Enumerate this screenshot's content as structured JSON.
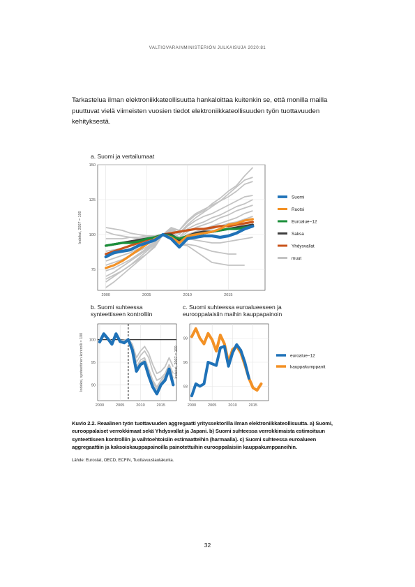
{
  "header": {
    "running_title": "VALTIOVARAINMINISTERIÖN JULKAISUJA 2020:81"
  },
  "body": {
    "paragraph": "Tarkastelua ilman elektroniikkateollisuutta hankaloittaa kuitenkin se, että monilla mailla puuttuvat vielä viimeisten vuosien tiedot elektroniikkateollisuuden työn tuottavuuden kehityksestä."
  },
  "figure": {
    "caption": "Kuvio 2.2.    Reaalinen työn tuottavuuden aggregaatti yrityssektorilla ilman elektroniikkateollisuutta. a) Suomi, eurooppalaiset verrokkimaat sekä Yhdysvallat ja Japani. b) Suomi suhteessa verrokkimaista estimoituun synteettiseen kontrolliin ja vaihtoehtoisiin estimaatteihin (harmaalla). c) Suomi suhteessa euroalueen aggregaattiin ja kaksoiskauppapainoilla painotettuihin eurooppalaisiin kauppakumppaneihin.",
    "source": "Lähde: Eurostat, OECD, ECFIN, Tuottavuuslautakunta."
  },
  "page_number": "32",
  "chart_data": [
    {
      "type": "line",
      "title": "a. Suomi ja vertailumaat",
      "ylabel": "Indeksi, 2007 = 100",
      "xlabel": "",
      "xlim": [
        1999,
        2019.5
      ],
      "ylim": [
        60,
        150
      ],
      "xticks": [
        2000,
        2005,
        2010,
        2015
      ],
      "yticks": [
        75,
        100,
        125,
        150
      ],
      "grid": true,
      "legend_position": "right",
      "years": [
        2000,
        2001,
        2002,
        2003,
        2004,
        2005,
        2006,
        2007,
        2008,
        2009,
        2010,
        2011,
        2012,
        2013,
        2014,
        2015,
        2016,
        2017,
        2018
      ],
      "series": [
        {
          "name": "Suomi",
          "color": "#1f72b8",
          "width": 4.2,
          "values": [
            84,
            87,
            88,
            89,
            92,
            94,
            96,
            100,
            97,
            91,
            97,
            98,
            99,
            99,
            98,
            99,
            101,
            104,
            106
          ]
        },
        {
          "name": "Ruotsi",
          "color": "#f39125",
          "width": 3.2,
          "values": [
            76,
            78,
            81,
            85,
            89,
            93,
            97,
            100,
            98,
            94,
            99,
            100,
            101,
            102,
            104,
            107,
            108,
            110,
            111
          ]
        },
        {
          "name": "Euroalue−12",
          "color": "#1b8f3a",
          "width": 3.2,
          "values": [
            92,
            93,
            94,
            94,
            95,
            97,
            98,
            100,
            99,
            97,
            99,
            100,
            101,
            102,
            103,
            104,
            104,
            105,
            106
          ]
        },
        {
          "name": "Saksa",
          "color": "#3d3d3d",
          "width": 3.2,
          "values": [
            92,
            93,
            94,
            95,
            96,
            97,
            98,
            100,
            100,
            96,
            99,
            101,
            102,
            102,
            103,
            104,
            105,
            106,
            107
          ]
        },
        {
          "name": "Yhdysvallat",
          "color": "#c9541b",
          "width": 3.2,
          "values": [
            86,
            88,
            90,
            92,
            94,
            96,
            98,
            100,
            101,
            102,
            103,
            104,
            104,
            105,
            106,
            106,
            107,
            108,
            109
          ]
        },
        {
          "name": "muut",
          "color": "#c3c3c3",
          "width": 1.8,
          "values": []
        }
      ],
      "others": [
        [
          62,
          66,
          71,
          76,
          81,
          86,
          92,
          100,
          104,
          103,
          109,
          114,
          117,
          122,
          126,
          131,
          135,
          142,
          148
        ],
        [
          66,
          70,
          74,
          78,
          83,
          88,
          93,
          100,
          105,
          103,
          110,
          115,
          118,
          121,
          124,
          127,
          131,
          136,
          138
        ],
        [
          70,
          73,
          77,
          81,
          85,
          89,
          94,
          100,
          103,
          100,
          106,
          110,
          113,
          115,
          118,
          121,
          124,
          127,
          128
        ],
        [
          74,
          76,
          79,
          82,
          86,
          90,
          95,
          100,
          102,
          98,
          104,
          107,
          109,
          112,
          114,
          117,
          120,
          122,
          125
        ],
        [
          78,
          80,
          82,
          85,
          88,
          91,
          95,
          100,
          101,
          97,
          102,
          105,
          107,
          109,
          112,
          114,
          117,
          119,
          121
        ],
        [
          81,
          83,
          85,
          87,
          90,
          93,
          96,
          100,
          101,
          96,
          100,
          102,
          104,
          106,
          108,
          110,
          112,
          115,
          117
        ],
        [
          85,
          86,
          88,
          90,
          92,
          94,
          97,
          100,
          100,
          95,
          99,
          101,
          103,
          104,
          106,
          108,
          109,
          111,
          113
        ],
        [
          88,
          89,
          90,
          92,
          94,
          96,
          98,
          100,
          99,
          94,
          98,
          100,
          101,
          102,
          103,
          104,
          105,
          106,
          107
        ],
        [
          102,
          100,
          99,
          98,
          97,
          98,
          99,
          100,
          99,
          96,
          97,
          96,
          95,
          94,
          94,
          95,
          96,
          97,
          98
        ],
        [
          105,
          104,
          103,
          101,
          100,
          99,
          99,
          100,
          98,
          93,
          92,
          88,
          84,
          80,
          79,
          78,
          78,
          78,
          null
        ],
        [
          97,
          97,
          97,
          98,
          98,
          99,
          99,
          100,
          99,
          93,
          93,
          92,
          90,
          88,
          87,
          86,
          86,
          null,
          null
        ],
        [
          68,
          71,
          74,
          78,
          82,
          86,
          91,
          100,
          104,
          101,
          107,
          112,
          116,
          120,
          124,
          129,
          134,
          139,
          141
        ]
      ]
    },
    {
      "type": "line",
      "title": "b. Suomi suhteessa synteettiseen kontrolliin",
      "ylabel": "Indeksi, synteettinen kontrolli = 100",
      "xlabel": "",
      "xlim": [
        1999.5,
        2018.8
      ],
      "ylim": [
        86.5,
        103.5
      ],
      "xticks": [
        2000,
        2005,
        2010,
        2015
      ],
      "yticks": [
        90,
        95,
        100
      ],
      "grid": true,
      "reference_line": 100,
      "vertical_marker": 2007,
      "years": [
        2000,
        2001,
        2002,
        2003,
        2004,
        2005,
        2006,
        2007,
        2008,
        2009,
        2010,
        2011,
        2012,
        2013,
        2014,
        2015,
        2016,
        2017,
        2018
      ],
      "series": [
        {
          "name": "",
          "color": "#1f72b8",
          "width": 4.2,
          "values": [
            99.5,
            101.3,
            100.2,
            99.0,
            101.3,
            99.6,
            99.3,
            100.0,
            97.7,
            93.0,
            94.5,
            95.0,
            92.0,
            89.5,
            88.0,
            90.0,
            91.0,
            93.5,
            90.0
          ]
        }
      ],
      "others": [
        [
          99.2,
          100.8,
          100.4,
          99.6,
          100.8,
          99.8,
          99.9,
          100.2,
          99.0,
          96.0,
          97.5,
          98.5,
          97.0,
          94.5,
          92.5,
          93.0,
          94.0,
          96.0,
          94.0
        ],
        [
          99.4,
          100.9,
          100.1,
          99.3,
          100.9,
          99.7,
          99.5,
          100.1,
          98.5,
          95.0,
          96.5,
          97.5,
          96.0,
          93.0,
          91.0,
          91.5,
          92.5,
          94.5,
          92.5
        ],
        [
          99.6,
          101.0,
          100.0,
          99.2,
          101.0,
          99.5,
          99.4,
          100.0,
          98.0,
          94.0,
          95.5,
          96.0,
          93.5,
          91.0,
          89.5,
          91.0,
          92.0,
          94.0,
          91.5
        ],
        [
          99.3,
          100.7,
          100.3,
          99.5,
          100.7,
          99.9,
          99.6,
          99.9,
          97.5,
          93.5,
          95.0,
          95.5,
          93.0,
          90.5,
          89.0,
          90.5,
          91.5,
          93.0,
          90.5
        ]
      ]
    },
    {
      "type": "line",
      "title": "c. Suomi suhteessa euroalueeseen ja eurooppalaisiin maihin kauppapainoin",
      "ylabel": "Indeksi, 2007 = 100",
      "xlabel": "",
      "xlim": [
        1999.5,
        2018.8
      ],
      "ylim": [
        91.2,
        100.8
      ],
      "xticks": [
        2000,
        2005,
        2010,
        2015
      ],
      "yticks": [
        93,
        96,
        99
      ],
      "grid": true,
      "legend_position": "right",
      "years": [
        2000,
        2001,
        2002,
        2003,
        2004,
        2005,
        2006,
        2007,
        2008,
        2009,
        2010,
        2011,
        2012,
        2013,
        2014,
        2015,
        2016,
        2017
      ],
      "series": [
        {
          "name": "euroalue−12",
          "color": "#1f72b8",
          "width": 4.0,
          "values": [
            91.8,
            93.3,
            93.0,
            93.3,
            96.0,
            95.8,
            95.6,
            97.8,
            98.0,
            95.5,
            97.2,
            98.2,
            97.5,
            96.0,
            94.0,
            null,
            null,
            null
          ]
        },
        {
          "name": "kauppakumppanit",
          "color": "#f39125",
          "width": 4.0,
          "values": [
            99.2,
            100.2,
            99.0,
            98.3,
            99.6,
            98.8,
            97.4,
            99.4,
            98.3,
            96.0,
            97.6,
            98.0,
            97.2,
            95.7,
            94.0,
            92.8,
            92.5,
            93.3
          ]
        }
      ]
    }
  ]
}
